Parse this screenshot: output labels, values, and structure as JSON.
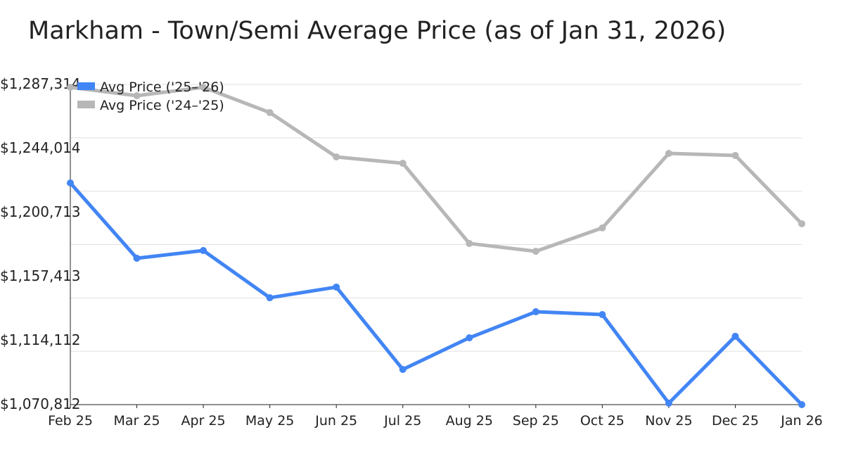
{
  "chart_data": {
    "type": "line",
    "title": "Markham - Town/Semi Average Price (as of Jan 31, 2026)",
    "xlabel": "",
    "ylabel": "",
    "categories": [
      "Feb 25",
      "Mar 25",
      "Apr 25",
      "May 25",
      "Jun 25",
      "Jul 25",
      "Aug 25",
      "Sep 25",
      "Oct 25",
      "Nov 25",
      "Dec 25",
      "Jan 26"
    ],
    "ylim": [
      1070812,
      1287314
    ],
    "y_ticks": [
      "$1,287,314",
      "$1,244,014",
      "$1,200,713",
      "$1,157,413",
      "$1,114,112",
      "$1,070,812"
    ],
    "grid": true,
    "legend_position": "top-left",
    "series": [
      {
        "name": "Avg Price ('25–'26)",
        "color": "#4285f4",
        "values": [
          1220700,
          1169800,
          1175000,
          1143100,
          1150300,
          1094600,
          1116000,
          1133600,
          1131700,
          1071800,
          1117000,
          1070812
        ]
      },
      {
        "name": "Avg Price ('24–'25)",
        "color": "#b7b7b7",
        "values": [
          1285400,
          1279700,
          1285400,
          1268300,
          1238300,
          1234000,
          1179800,
          1174500,
          1190300,
          1240700,
          1239300,
          1193100
        ]
      }
    ]
  }
}
